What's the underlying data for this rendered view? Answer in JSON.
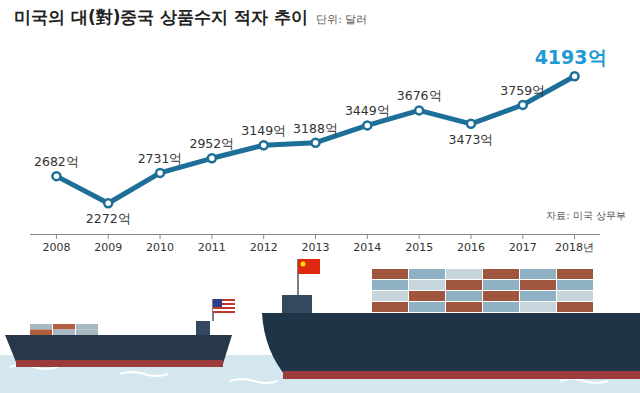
{
  "chart_data": {
    "type": "line",
    "title": "미국의 대(對)중국 상품수지 적자 추이",
    "subtitle": "단위: 달러",
    "source": "자료: 미국 상무부",
    "x": [
      2008,
      2009,
      2010,
      2011,
      2012,
      2013,
      2014,
      2015,
      2016,
      2017,
      2018
    ],
    "values": [
      2682,
      2272,
      2731,
      2952,
      3149,
      3188,
      3449,
      3676,
      3473,
      3759,
      4193
    ],
    "value_labels": [
      "2682억",
      "2272억",
      "2731억",
      "2952억",
      "3149억",
      "3188억",
      "3449억",
      "3676억",
      "3473억",
      "3759억",
      "4193억"
    ],
    "color": "#1d6f98",
    "xlim": [
      2007.5,
      2018.5
    ],
    "xticks": [
      2008,
      2009,
      2010,
      2011,
      2012,
      2013,
      2014,
      2015,
      2016,
      2017,
      {
        "value": 2018,
        "label": "2018년"
      }
    ],
    "ylim": [
      1800,
      4400
    ],
    "data_labels": true,
    "tick_labels": "x",
    "grid": false,
    "marker": "circle"
  }
}
